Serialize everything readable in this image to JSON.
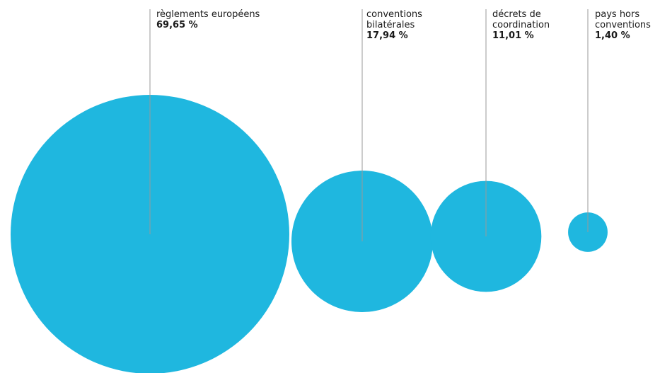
{
  "chart_data": {
    "type": "bubble",
    "title": "",
    "categories": [
      "règlements européens",
      "conventions\nbilatérales",
      "décrets de\ncoordination",
      "pays hors\nconventions"
    ],
    "values": [
      69.65,
      17.94,
      11.01,
      1.4
    ],
    "value_labels": [
      "69,65 %",
      "17,94 %",
      "11,01 %",
      "1,40 %"
    ],
    "unit": "%",
    "colors": {
      "bubble": "#1fb7df",
      "leader_line": "#9a9a9a",
      "text": "#1a1a1a"
    },
    "grid": false,
    "legend": "none"
  }
}
